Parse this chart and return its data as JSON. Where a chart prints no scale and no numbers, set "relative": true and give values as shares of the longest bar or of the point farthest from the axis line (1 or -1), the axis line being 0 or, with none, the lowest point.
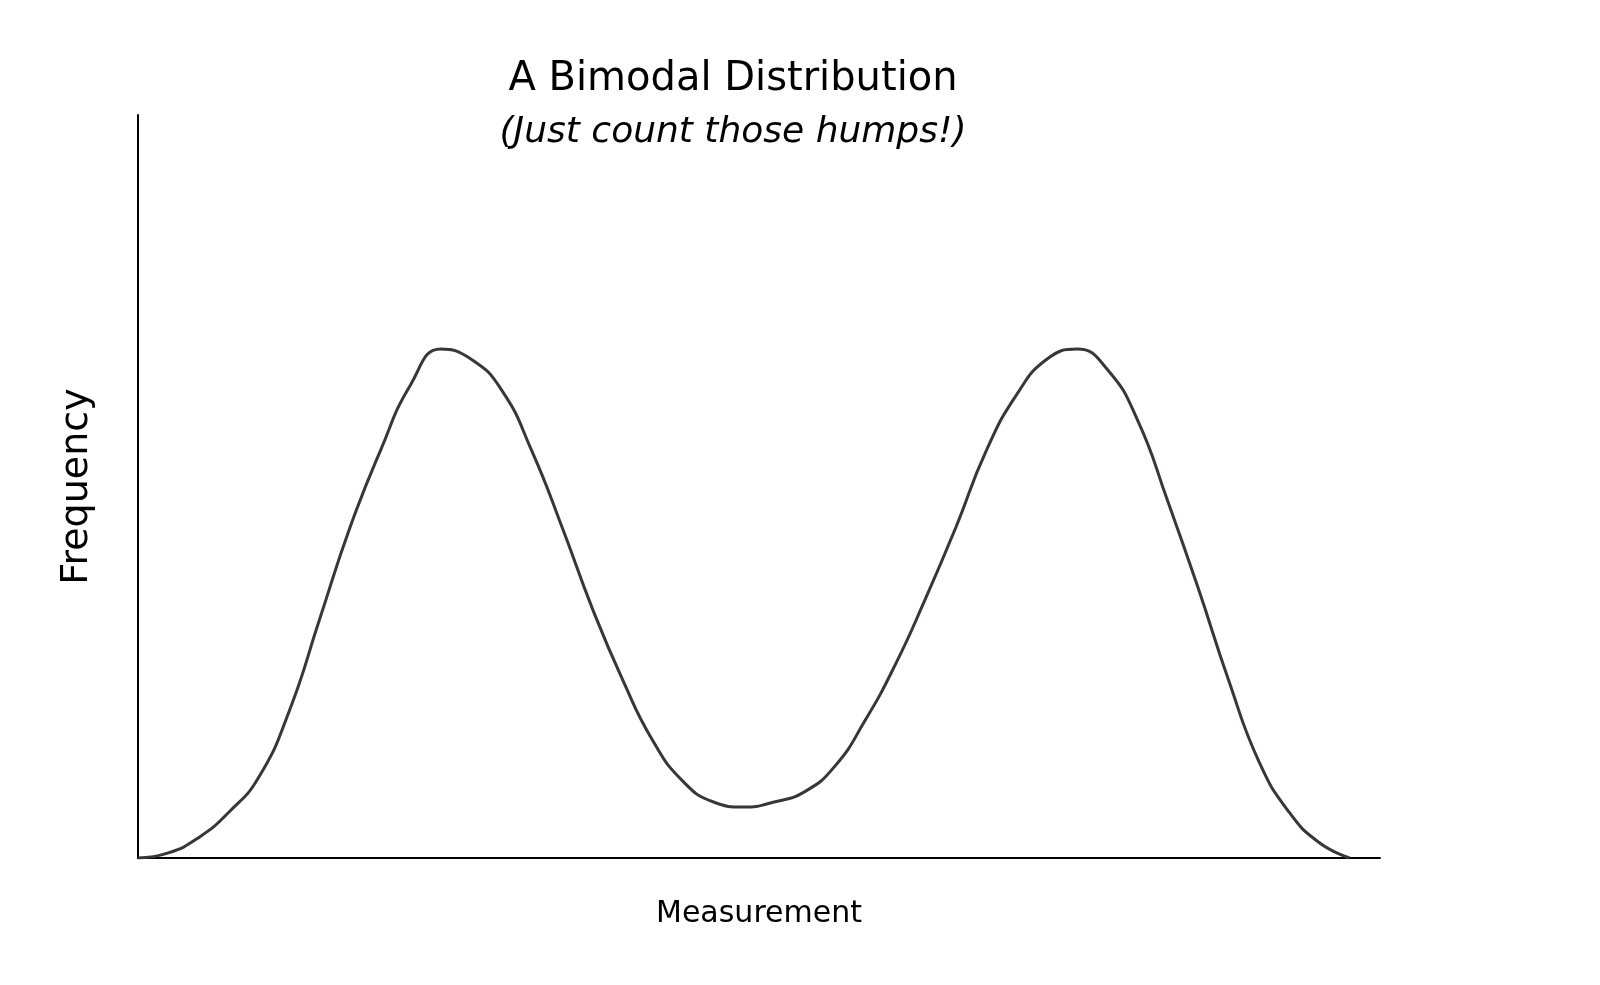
{
  "chart_data": {
    "type": "line",
    "title": "A Bimodal Distribution",
    "subtitle": "(Just count those humps!)",
    "xlabel": "Measurement",
    "ylabel": "Frequency",
    "relative": true,
    "grid": false,
    "categories": [
      null,
      null,
      null,
      null,
      null,
      null,
      null,
      null,
      null,
      null,
      null,
      null,
      null,
      null,
      null,
      null,
      null,
      null,
      null,
      null,
      null,
      null,
      null,
      null,
      null,
      null,
      null,
      null,
      null,
      null,
      null,
      null,
      null,
      null,
      null,
      null,
      null,
      null,
      null,
      null,
      null,
      null
    ],
    "series": [
      {
        "color": "#3a3538",
        "values": [
          0.0,
          0.01,
          0.04,
          0.09,
          0.16,
          0.29,
          0.47,
          0.65,
          0.8,
          0.93,
          1.0,
          0.98,
          0.92,
          0.8,
          0.65,
          0.49,
          0.35,
          0.23,
          0.15,
          0.11,
          0.1,
          0.11,
          0.13,
          0.18,
          0.27,
          0.38,
          0.51,
          0.65,
          0.8,
          0.91,
          0.98,
          1.0,
          0.96,
          0.86,
          0.7,
          0.53,
          0.35,
          0.19,
          0.09,
          0.03,
          0.0,
          null
        ]
      }
    ]
  }
}
